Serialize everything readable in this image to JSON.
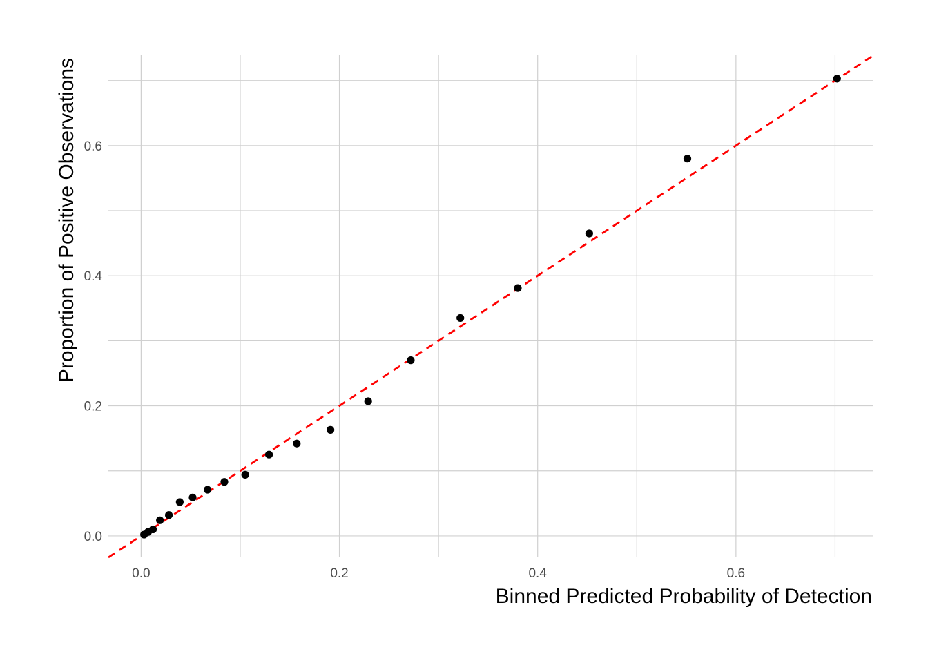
{
  "chart_data": {
    "type": "scatter",
    "title": "",
    "xlabel": "Binned Predicted Probability of Detection",
    "ylabel": "Proportion of Positive Observations",
    "xlim": [
      -0.033,
      0.738
    ],
    "ylim": [
      -0.033,
      0.74
    ],
    "x_ticks": [
      "0.0",
      "0.2",
      "0.4",
      "0.6"
    ],
    "y_ticks": [
      "0.0",
      "0.2",
      "0.4",
      "0.6"
    ],
    "x_tick_values": [
      0.0,
      0.2,
      0.4,
      0.6
    ],
    "y_tick_values": [
      0.0,
      0.2,
      0.4,
      0.6
    ],
    "x_minor_values": [
      0.1,
      0.3,
      0.5,
      0.7
    ],
    "y_minor_values": [
      0.1,
      0.3,
      0.5,
      0.7
    ],
    "grid": true,
    "point_color": "#000000",
    "reference_line": {
      "type": "identity",
      "slope": 1,
      "intercept": 0,
      "color": "#ff0000",
      "style": "dashed"
    },
    "points": [
      {
        "x": 0.003,
        "y": 0.002
      },
      {
        "x": 0.007,
        "y": 0.006
      },
      {
        "x": 0.012,
        "y": 0.01
      },
      {
        "x": 0.019,
        "y": 0.024
      },
      {
        "x": 0.028,
        "y": 0.032
      },
      {
        "x": 0.039,
        "y": 0.052
      },
      {
        "x": 0.052,
        "y": 0.059
      },
      {
        "x": 0.067,
        "y": 0.071
      },
      {
        "x": 0.084,
        "y": 0.083
      },
      {
        "x": 0.105,
        "y": 0.094
      },
      {
        "x": 0.129,
        "y": 0.125
      },
      {
        "x": 0.157,
        "y": 0.142
      },
      {
        "x": 0.191,
        "y": 0.163
      },
      {
        "x": 0.229,
        "y": 0.207
      },
      {
        "x": 0.272,
        "y": 0.27
      },
      {
        "x": 0.322,
        "y": 0.335
      },
      {
        "x": 0.38,
        "y": 0.381
      },
      {
        "x": 0.452,
        "y": 0.465
      },
      {
        "x": 0.551,
        "y": 0.58
      },
      {
        "x": 0.702,
        "y": 0.703
      }
    ]
  }
}
